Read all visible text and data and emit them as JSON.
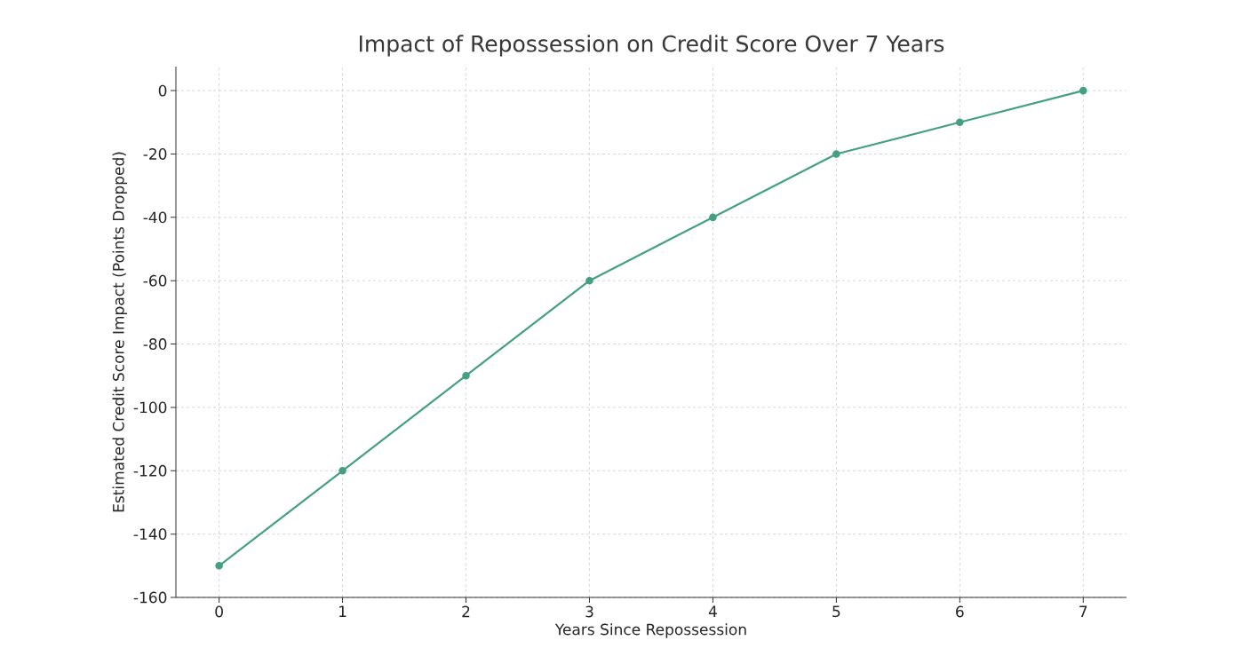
{
  "chart_data": {
    "type": "line",
    "title": "Impact of Repossession on Credit Score Over 7 Years",
    "xlabel": "Years Since Repossession",
    "ylabel": "Estimated Credit Score Impact (Points Dropped)",
    "x": [
      0,
      1,
      2,
      3,
      4,
      5,
      6,
      7
    ],
    "series": [
      {
        "color": "#44a07e",
        "values": [
          -150,
          -120,
          -90,
          -60,
          -40,
          -20,
          -10,
          0
        ]
      }
    ],
    "xlim": [
      -0.35,
      7.35
    ],
    "ylim": [
      -160,
      7.6
    ],
    "xticks": [
      0,
      1,
      2,
      3,
      4,
      5,
      6,
      7
    ],
    "yticks": [
      -160,
      -140,
      -120,
      -100,
      -80,
      -60,
      -40,
      -20,
      0
    ],
    "grid": true,
    "marker": "circle",
    "line_style": "solid"
  }
}
